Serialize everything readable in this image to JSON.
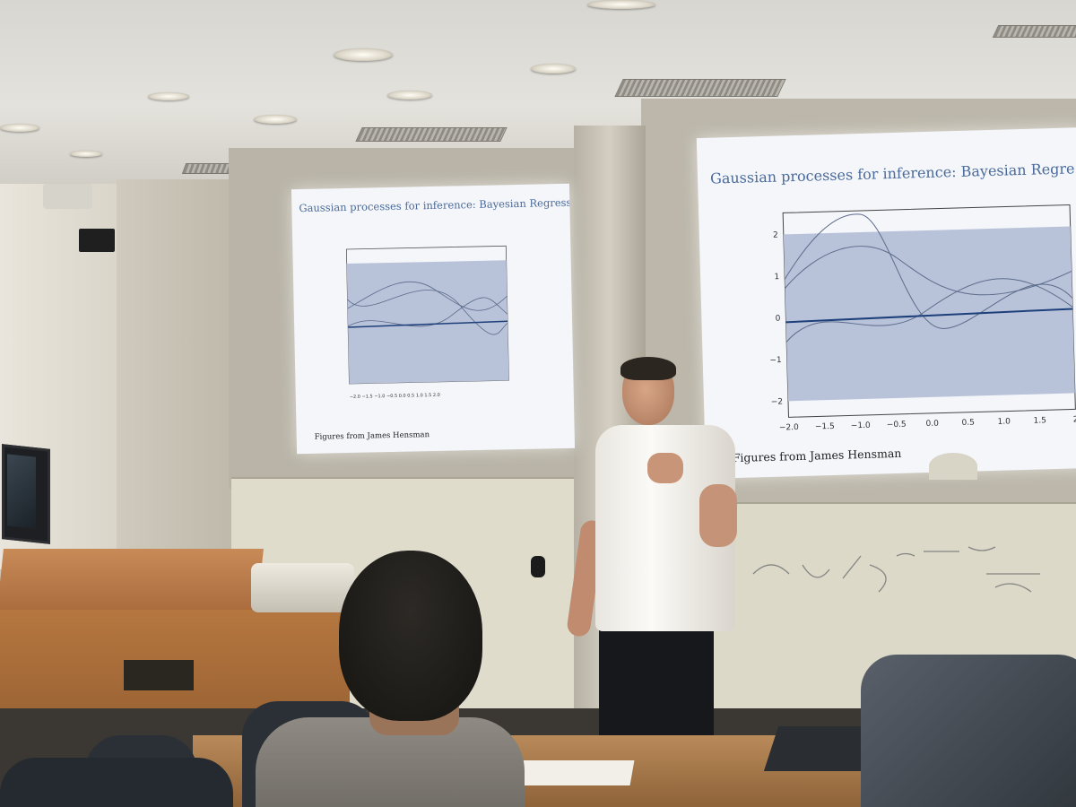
{
  "slides": [
    {
      "title": "Gaussian processes for inference: Bayesian Regression",
      "credit": "Figures from James Hensman"
    },
    {
      "title": "Gaussian processes for inference: Bayesian Regre",
      "credit": "Figures from James Hensman",
      "x_ticks": [
        "−2.0",
        "−1.5",
        "−1.0",
        "−0.5",
        "0.0",
        "0.5",
        "1.0",
        "1.5",
        "2"
      ],
      "y_ticks": [
        "2",
        "1",
        "0",
        "−1",
        "−2"
      ]
    }
  ],
  "colors": {
    "slide_title": "#4a6a9a",
    "plot_fill": "#b8c2d9",
    "mean_line": "#1d3f7a"
  }
}
